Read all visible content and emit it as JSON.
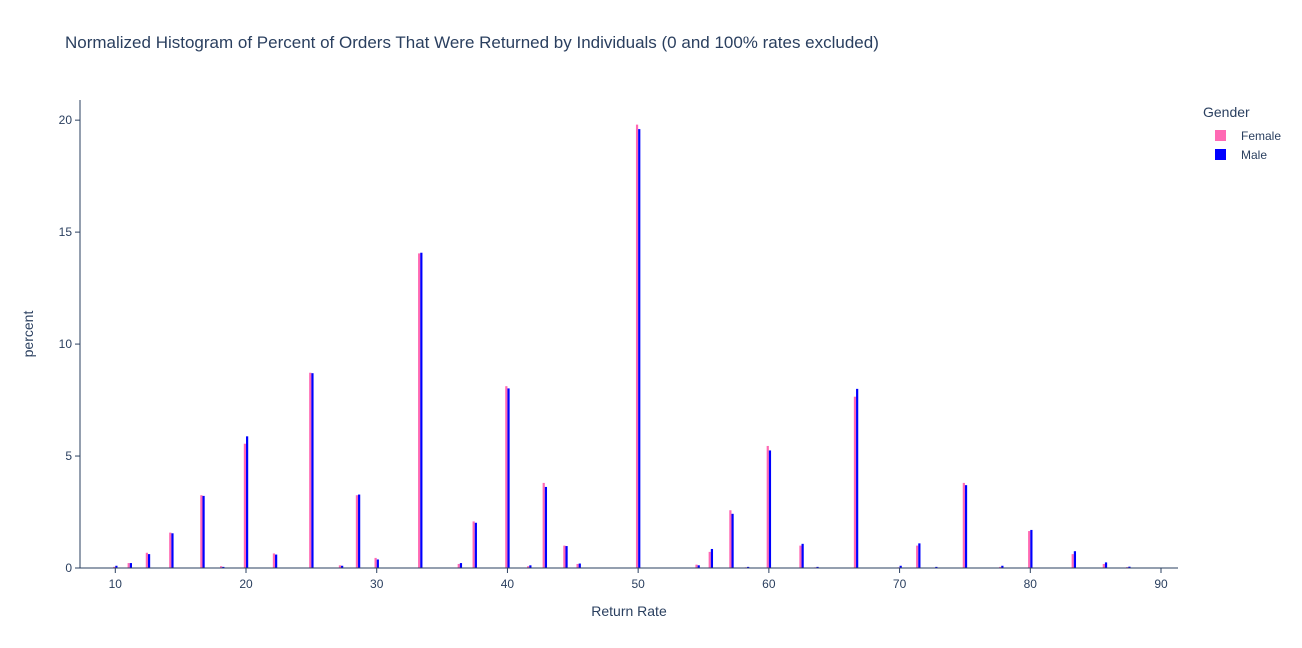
{
  "chart_data": {
    "type": "bar",
    "title": "Normalized Histogram of Percent of Orders That Were Returned by Individuals (0 and 100% rates excluded)",
    "xlabel": "Return Rate",
    "ylabel": "percent",
    "xlim": [
      7.3,
      91.3
    ],
    "ylim": [
      0,
      20.9
    ],
    "x_ticks": [
      10,
      20,
      30,
      40,
      50,
      60,
      70,
      80,
      90
    ],
    "y_ticks": [
      0,
      5,
      10,
      15,
      20
    ],
    "grid": false,
    "legend": {
      "title": "Gender",
      "placement": "right"
    },
    "x": [
      9.09,
      10,
      11.11,
      12.5,
      14.29,
      16.67,
      18.18,
      20,
      22.22,
      25,
      27.27,
      28.57,
      30,
      33.33,
      36.36,
      37.5,
      40,
      41.67,
      42.86,
      44.44,
      45.45,
      50,
      54.55,
      55.56,
      57.14,
      58.33,
      60,
      62.5,
      63.64,
      66.67,
      70,
      71.43,
      72.73,
      75,
      77.78,
      80,
      83.33,
      85.71,
      87.5,
      88.89
    ],
    "series": [
      {
        "name": "Female",
        "color": "#ff69b4",
        "values": [
          0.02,
          0.05,
          0.22,
          0.68,
          1.58,
          3.25,
          0.08,
          5.55,
          0.65,
          8.72,
          0.12,
          3.25,
          0.45,
          14.05,
          0.18,
          2.08,
          8.12,
          0.08,
          3.8,
          1.0,
          0.18,
          19.8,
          0.15,
          0.72,
          2.58,
          0.03,
          5.45,
          1.0,
          0.03,
          7.65,
          0.03,
          1.0,
          0.02,
          3.8,
          0.05,
          1.65,
          0.62,
          0.18,
          0.04,
          0.02
        ]
      },
      {
        "name": "Male",
        "color": "#0000ff",
        "values": [
          0.02,
          0.1,
          0.22,
          0.62,
          1.55,
          3.22,
          0.05,
          5.88,
          0.6,
          8.7,
          0.1,
          3.28,
          0.38,
          14.08,
          0.22,
          2.02,
          8.02,
          0.12,
          3.62,
          0.98,
          0.2,
          19.6,
          0.12,
          0.85,
          2.42,
          0.05,
          5.25,
          1.08,
          0.05,
          8.0,
          0.1,
          1.1,
          0.05,
          3.7,
          0.1,
          1.7,
          0.75,
          0.25,
          0.06,
          0.02
        ]
      }
    ]
  }
}
